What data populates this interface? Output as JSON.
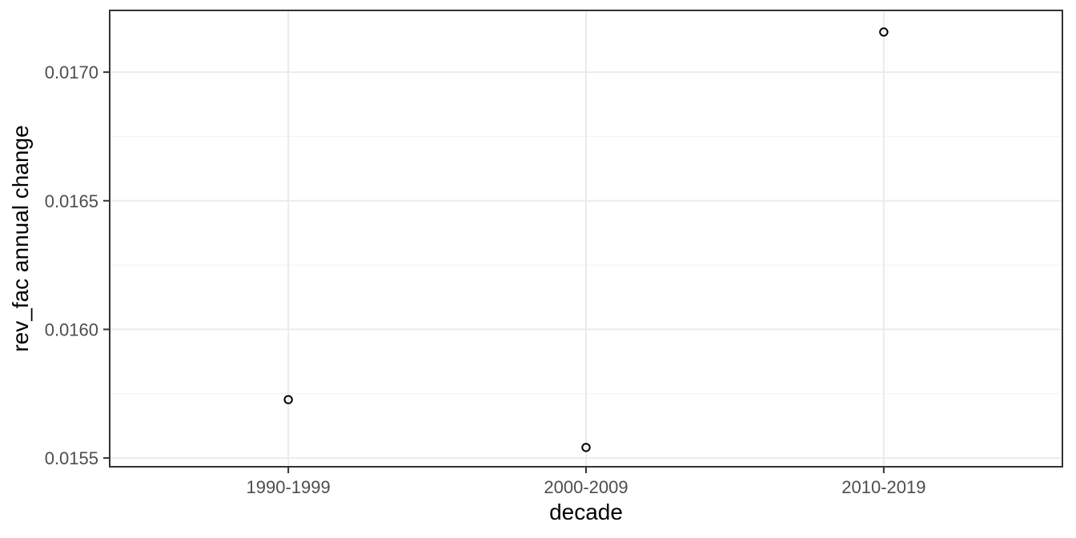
{
  "chart_data": {
    "type": "scatter",
    "title": "",
    "xlabel": "decade",
    "ylabel": "rev_fac annual change",
    "categories": [
      "1990-1999",
      "2000-2009",
      "2010-2019"
    ],
    "values": [
      0.015727,
      0.015541,
      0.017156
    ],
    "ylim": [
      0.015466,
      0.01724
    ],
    "yticks": [
      0.0155,
      0.016,
      0.0165,
      0.017
    ],
    "ytick_labels": [
      "0.0155",
      "0.0160",
      "0.0165",
      "0.0170"
    ],
    "yminor": [
      0.01575,
      0.01625,
      0.01675
    ],
    "grid": "major-and-minor",
    "legend": "none",
    "marker": "open-circle"
  },
  "colors": {
    "background": "#ffffff",
    "panel_background": "#ffffff",
    "panel_border": "#333333",
    "grid_major": "#ebebeb",
    "grid_minor": "#f4f4f4",
    "tick_mark": "#333333",
    "axis_text": "#4d4d4d",
    "axis_title": "#000000",
    "point_stroke": "#000000"
  }
}
